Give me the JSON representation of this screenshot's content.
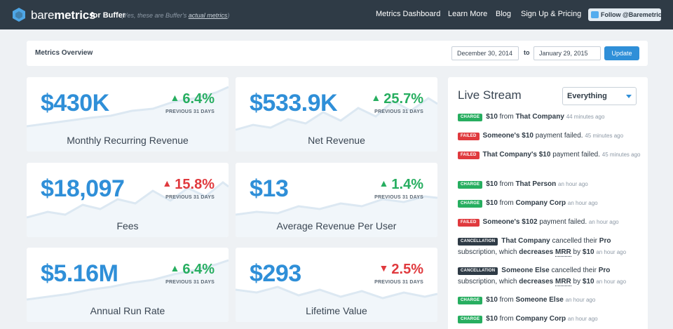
{
  "nav": {
    "brand_light": "bare",
    "brand_bold": "metrics",
    "for_text": "for Buffer",
    "tagline_prefix": "(Yes, these are Buffer's",
    "tagline_link": "actual metrics",
    "tagline_suffix": ")",
    "links": [
      "Metrics Dashboard",
      "Learn More",
      "Blog",
      "Sign Up & Pricing"
    ],
    "follow_label": "Follow @Baremetrics"
  },
  "overview": {
    "title": "Metrics Overview",
    "start_date": "December 30, 2014",
    "to_label": "to",
    "end_date": "January 29, 2015",
    "update_label": "Update"
  },
  "metrics": [
    {
      "value": "$430K",
      "change": "6.4%",
      "direction": "up",
      "period": "PREVIOUS 31 DAYS",
      "label": "Monthly Recurring Revenue"
    },
    {
      "value": "$533.9K",
      "change": "25.7%",
      "direction": "up",
      "period": "PREVIOUS 31 DAYS",
      "label": "Net Revenue"
    },
    {
      "value": "$18,097",
      "change": "15.8%",
      "direction": "up",
      "period": "PREVIOUS 31 DAYS",
      "label": "Fees"
    },
    {
      "value": "$13",
      "change": "1.4%",
      "direction": "up",
      "period": "PREVIOUS 31 DAYS",
      "label": "Average Revenue Per User"
    },
    {
      "value": "$5.16M",
      "change": "6.4%",
      "direction": "up",
      "period": "PREVIOUS 31 DAYS",
      "label": "Annual Run Rate"
    },
    {
      "value": "$293",
      "change": "2.5%",
      "direction": "down",
      "period": "PREVIOUS 31 DAYS",
      "label": "Lifetime Value"
    }
  ],
  "colors": {
    "positive": "#27ae60",
    "negative": "#e03a3e",
    "accent": "#2f8fd8",
    "navbar": "#2f3b46"
  },
  "stream": {
    "title": "Live Stream",
    "filter": "Everything",
    "events": [
      {
        "tag": "CHARGE",
        "type": "charge",
        "amount": "$10",
        "from": "from",
        "who": "That Company",
        "time": "44 minutes ago"
      },
      {
        "tag": "FAILED",
        "type": "failed",
        "who": "Someone's $10",
        "text": "payment failed.",
        "time": "45 minutes ago"
      },
      {
        "tag": "FAILED",
        "type": "failed",
        "who": "That Company's $10",
        "text": "payment failed.",
        "time": "45 minutes ago"
      },
      {
        "tag": "CHARGE",
        "type": "charge",
        "amount": "$10",
        "from": "from",
        "who": "That Person",
        "time": "an hour ago"
      },
      {
        "tag": "CHARGE",
        "type": "charge",
        "amount": "$10",
        "from": "from",
        "who": "Company Corp",
        "time": "an hour ago"
      },
      {
        "tag": "FAILED",
        "type": "failed",
        "who": "Someone's $102",
        "text": "payment failed.",
        "time": "an hour ago"
      },
      {
        "tag": "CANCELLATION",
        "type": "cancel",
        "who": "That Company",
        "t1": "cancelled their",
        "plan": "Pro",
        "t2": "subscription, which",
        "dec": "decreases",
        "mrr": "MRR",
        "by": "by",
        "amount": "$10",
        "time": "an hour ago"
      },
      {
        "tag": "CANCELLATION",
        "type": "cancel",
        "who": "Someone Else",
        "t1": "cancelled their",
        "plan": "Pro",
        "t2": "subscription, which",
        "dec": "decreases",
        "mrr": "MRR",
        "by": "by",
        "amount": "$10",
        "time": "an hour ago"
      },
      {
        "tag": "CHARGE",
        "type": "charge",
        "amount": "$10",
        "from": "from",
        "who": "Someone Else",
        "time": "an hour ago"
      },
      {
        "tag": "CHARGE",
        "type": "charge",
        "amount": "$10",
        "from": "from",
        "who": "Company Corp",
        "time": "an hour ago"
      }
    ]
  }
}
